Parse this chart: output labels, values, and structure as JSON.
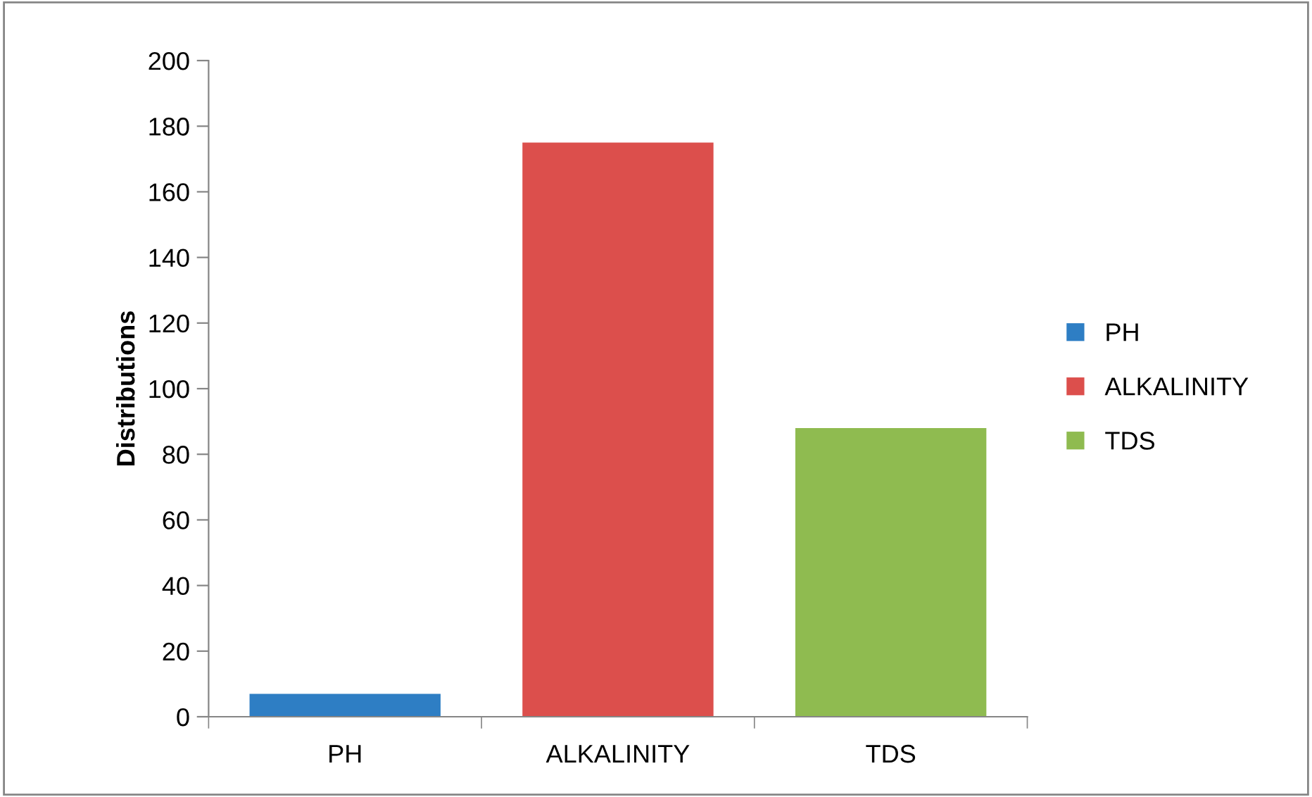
{
  "chart_data": {
    "type": "bar",
    "ylabel": "Distributions",
    "categories": [
      "PH",
      "ALKALINITY",
      "TDS"
    ],
    "series": [
      {
        "name": "PH",
        "color": "#2e7ec4",
        "values": [
          7,
          null,
          null
        ]
      },
      {
        "name": "ALKALINITY",
        "color": "#dc4f4c",
        "values": [
          null,
          175,
          null
        ]
      },
      {
        "name": "TDS",
        "color": "#8fbb50",
        "values": [
          null,
          null,
          88
        ]
      }
    ],
    "ylim": [
      0,
      200
    ],
    "yticks": [
      0,
      20,
      40,
      60,
      80,
      100,
      120,
      140,
      160,
      180,
      200
    ],
    "grid": false,
    "legend": "right"
  }
}
